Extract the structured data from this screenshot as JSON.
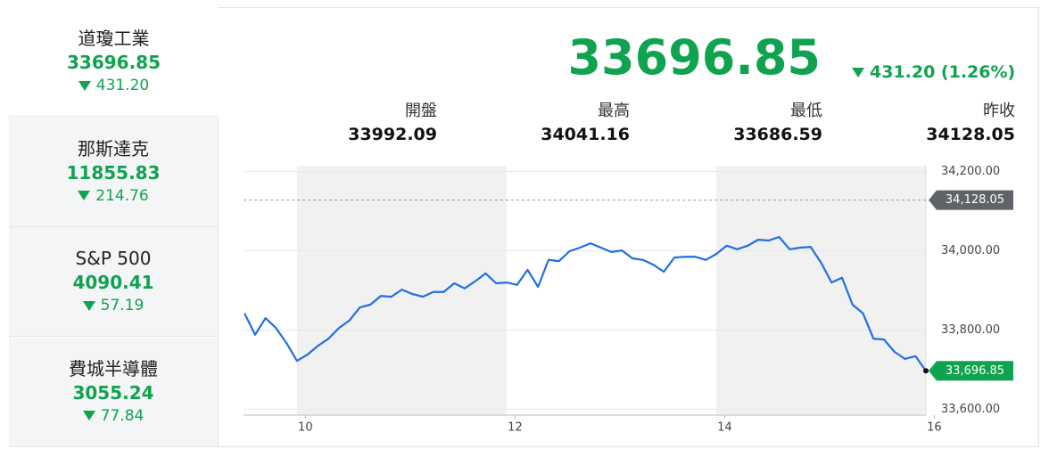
{
  "sidebar": [
    {
      "name": "道瓊工業",
      "price": "33696.85",
      "change": "431.20"
    },
    {
      "name": "那斯達克",
      "price": "11855.83",
      "change": "214.76"
    },
    {
      "name": "S&P 500",
      "price": "4090.41",
      "change": "57.19"
    },
    {
      "name": "費城半導體",
      "price": "3055.24",
      "change": "77.84"
    }
  ],
  "header": {
    "price": "33696.85",
    "change": "431.20 (1.26%)"
  },
  "stats": [
    {
      "label": "開盤",
      "value": "33992.09"
    },
    {
      "label": "最高",
      "value": "34041.16"
    },
    {
      "label": "最低",
      "value": "33686.59"
    },
    {
      "label": "昨收",
      "value": "34128.05"
    }
  ],
  "chart_data": {
    "type": "line",
    "x": [
      9.42,
      9.52,
      9.62,
      9.72,
      9.82,
      9.92,
      10.02,
      10.12,
      10.22,
      10.32,
      10.42,
      10.52,
      10.62,
      10.72,
      10.82,
      10.92,
      11.02,
      11.12,
      11.22,
      11.32,
      11.42,
      11.52,
      11.62,
      11.72,
      11.82,
      11.92,
      12.02,
      12.12,
      12.22,
      12.32,
      12.42,
      12.52,
      12.62,
      12.72,
      12.82,
      12.92,
      13.02,
      13.12,
      13.22,
      13.32,
      13.42,
      13.52,
      13.62,
      13.72,
      13.82,
      13.92,
      14.02,
      14.12,
      14.22,
      14.32,
      14.42,
      14.52,
      14.62,
      14.72,
      14.82,
      14.92,
      15.02,
      15.12,
      15.22,
      15.32,
      15.42,
      15.52,
      15.62,
      15.72,
      15.82,
      15.92
    ],
    "series": [
      {
        "color": "#1f6fe5",
        "values": [
          33842,
          33788,
          33830,
          33805,
          33767,
          33722,
          33738,
          33760,
          33778,
          33805,
          33824,
          33857,
          33864,
          33886,
          33884,
          33902,
          33891,
          33884,
          33896,
          33896,
          33918,
          33905,
          33923,
          33943,
          33918,
          33920,
          33914,
          33952,
          33909,
          33977,
          33974,
          33999,
          34008,
          34019,
          34008,
          33997,
          34001,
          33981,
          33977,
          33965,
          33947,
          33983,
          33985,
          33985,
          33977,
          33992,
          34013,
          34004,
          34013,
          34028,
          34026,
          34035,
          34004,
          34008,
          34010,
          33970,
          33920,
          33932,
          33864,
          33842,
          33778,
          33776,
          33745,
          33727,
          33734,
          33696.85
        ]
      }
    ],
    "xlim": [
      9.41,
      15.92
    ],
    "xticks": [
      10,
      12,
      14,
      16
    ],
    "ylim": [
      33585,
      34215
    ],
    "yticks": [
      {
        "value": 33600,
        "label": "33,600.00"
      },
      {
        "value": 33800,
        "label": "33,800.00"
      },
      {
        "value": 34000,
        "label": "34,000.00"
      },
      {
        "value": 34200,
        "label": "34,200.00"
      }
    ],
    "shaded_ranges": [
      [
        9.92,
        11.92
      ],
      [
        13.92,
        15.92
      ]
    ],
    "reference_line": {
      "value": 34128.05,
      "label": "34,128.05"
    },
    "last_label": "33,696.85",
    "grid": true
  }
}
